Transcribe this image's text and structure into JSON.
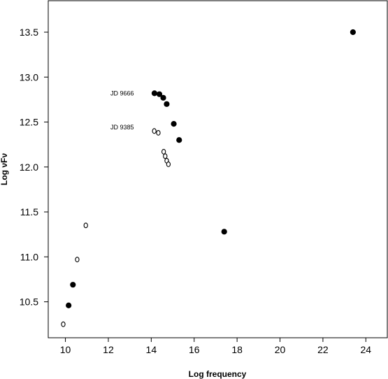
{
  "chart_data": {
    "type": "scatter",
    "title": "",
    "xlabel": "Log frequency",
    "ylabel": "Log νFν",
    "xlim": [
      9.2,
      25.0
    ],
    "ylim": [
      10.1,
      13.85
    ],
    "x_ticks": [
      10,
      12,
      14,
      16,
      18,
      20,
      22,
      24
    ],
    "x_tick_labels": [
      "10",
      "12",
      "14",
      "16",
      "18",
      "20",
      "22",
      "24"
    ],
    "y_ticks": [
      10.5,
      11.0,
      11.5,
      12.0,
      12.5,
      13.0,
      13.5
    ],
    "y_tick_labels": [
      "10.5",
      "11.0",
      "11.5",
      "12.0",
      "12.5",
      "13.0",
      "13.5"
    ],
    "grid": false,
    "annotations": [
      {
        "text": "JD 9666",
        "x": 12.1,
        "y": 12.82
      },
      {
        "text": "JD 9385",
        "x": 12.1,
        "y": 12.44
      }
    ],
    "series": [
      {
        "marker": "filled",
        "color": "#000000",
        "points": [
          {
            "x": 10.15,
            "y": 10.46
          },
          {
            "x": 10.35,
            "y": 10.69
          },
          {
            "x": 14.15,
            "y": 12.82
          },
          {
            "x": 14.38,
            "y": 12.81
          },
          {
            "x": 14.56,
            "y": 12.77
          },
          {
            "x": 14.72,
            "y": 12.7
          },
          {
            "x": 15.05,
            "y": 12.48
          },
          {
            "x": 15.3,
            "y": 12.3
          },
          {
            "x": 17.4,
            "y": 11.28
          },
          {
            "x": 23.4,
            "y": 13.5
          }
        ]
      },
      {
        "marker": "open",
        "color": "#000000",
        "points": [
          {
            "x": 9.9,
            "y": 10.25
          },
          {
            "x": 10.55,
            "y": 10.97
          },
          {
            "x": 10.95,
            "y": 11.35
          },
          {
            "x": 14.14,
            "y": 12.4
          },
          {
            "x": 14.33,
            "y": 12.38
          },
          {
            "x": 14.58,
            "y": 12.17
          },
          {
            "x": 14.65,
            "y": 12.12
          },
          {
            "x": 14.72,
            "y": 12.07
          },
          {
            "x": 14.8,
            "y": 12.03
          }
        ]
      }
    ]
  }
}
